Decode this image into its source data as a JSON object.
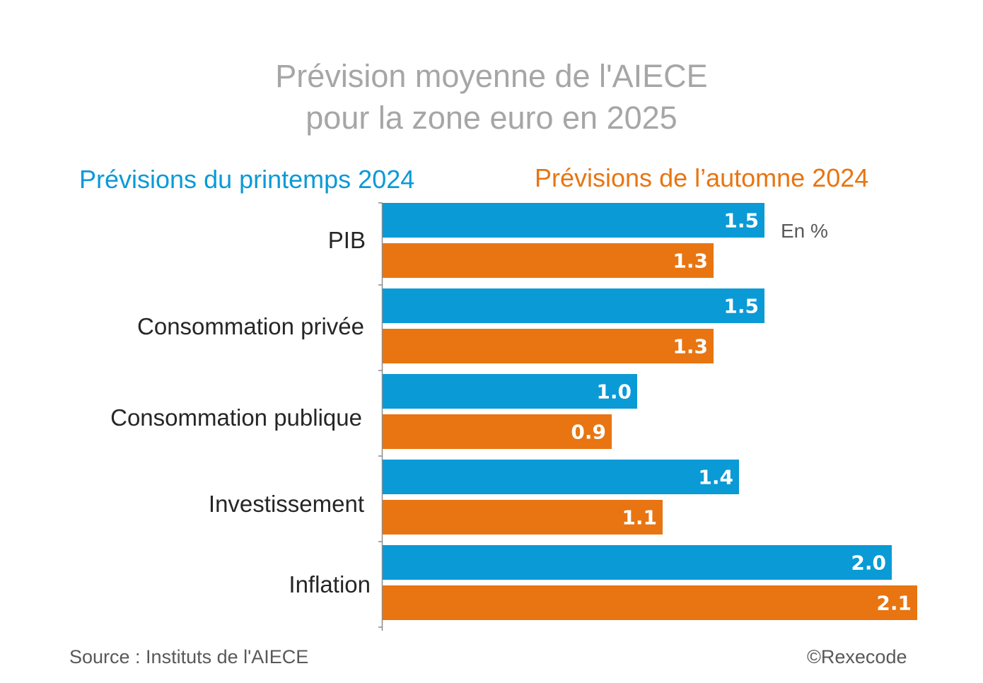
{
  "chart_data": {
    "type": "bar",
    "orientation": "horizontal",
    "title": "Prévision moyenne de l'AIECE pour la zone euro en 2025",
    "title_lines": [
      "Prévision moyenne de l'AIECE",
      "pour la zone euro en 2025"
    ],
    "unit": "En %",
    "categories": [
      "PIB",
      "Consommation privée",
      "Consommation publique",
      "Investissement",
      "Inflation"
    ],
    "series": [
      {
        "name": "Prévisions du printemps 2024",
        "color": "#0a9ad6",
        "values": [
          1.5,
          1.5,
          1.0,
          1.4,
          2.0
        ]
      },
      {
        "name": "Prévisions de l’automne 2024",
        "color": "#e87511",
        "values": [
          1.3,
          1.3,
          0.9,
          1.1,
          2.1
        ]
      }
    ],
    "xlim": [
      0,
      2.1
    ],
    "grid": false,
    "legend_placement": "top",
    "source": "Source : Instituts de l'AIECE",
    "credit": "©Rexecode"
  }
}
